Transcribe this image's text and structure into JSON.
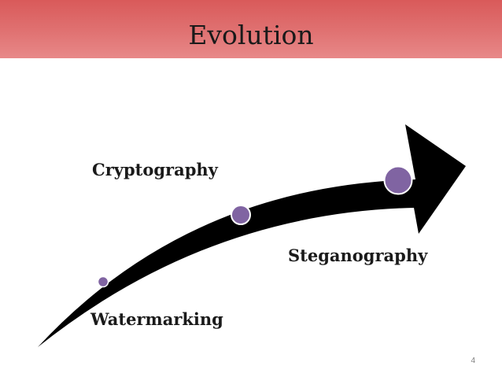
{
  "slide": {
    "title": "Evolution",
    "page_number": "4"
  },
  "colors": {
    "header_band": "#e07272",
    "arrow_fill": "#000000",
    "node_fill": "#8064a2",
    "node_stroke": "#ffffff"
  },
  "diagram": {
    "type": "growth-arrow",
    "arrow_icon": "curved-arrow-icon",
    "stages": [
      {
        "label": "Watermarking",
        "order": 1
      },
      {
        "label": "Cryptography",
        "order": 2
      },
      {
        "label": "Steganography",
        "order": 3
      }
    ]
  }
}
